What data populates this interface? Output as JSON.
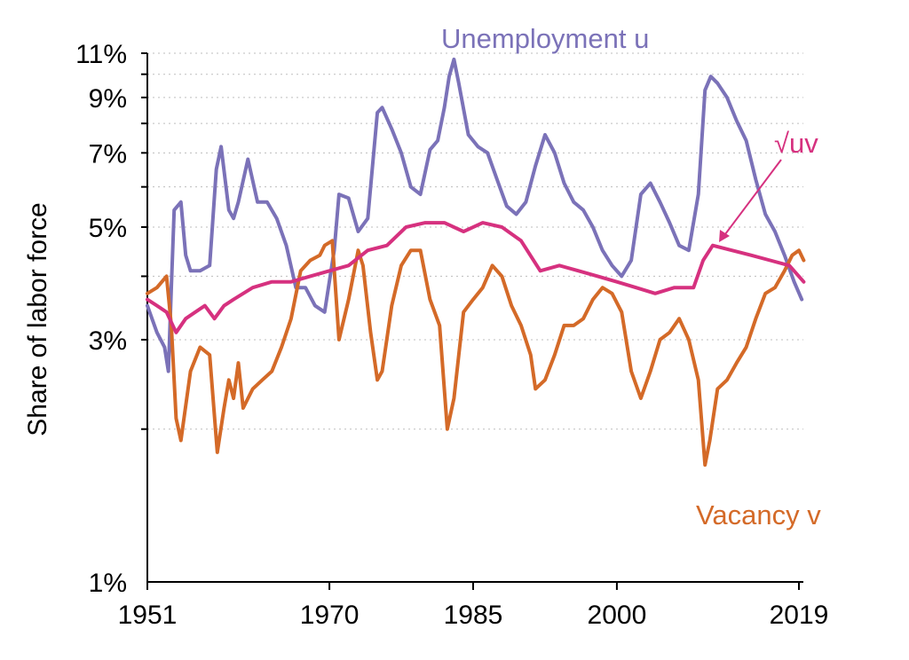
{
  "chart_data": {
    "type": "line",
    "ylabel": "Share of labor force",
    "y_scale": "log",
    "ylim": [
      1,
      11
    ],
    "xlim": [
      1951,
      2019
    ],
    "x_ticks": [
      "1951",
      "1970",
      "1985",
      "2000",
      "2019"
    ],
    "y_ticks": [
      "1%",
      "3%",
      "5%",
      "7%",
      "9%",
      "11%"
    ],
    "y_gridlines": [
      2,
      3,
      4,
      5,
      6,
      7,
      8,
      9,
      10,
      11
    ],
    "grid": "dotted horizontal",
    "series": [
      {
        "name": "Unemployment u",
        "color": "#7b72b8",
        "x": [
          1951,
          1952,
          1952.8,
          1953.2,
          1953.5,
          1953.8,
          1954.5,
          1955,
          1955.5,
          1956.5,
          1957.5,
          1958.2,
          1958.7,
          1959.5,
          1960,
          1960.5,
          1961.5,
          1962.5,
          1963.5,
          1964.5,
          1965.5,
          1966.5,
          1967.5,
          1968.5,
          1969.5,
          1970.5,
          1971,
          1972,
          1973,
          1974,
          1975,
          1975.5,
          1976.5,
          1977.5,
          1978.5,
          1979.5,
          1980.5,
          1981.3,
          1982,
          1982.5,
          1983,
          1983.5,
          1984.5,
          1985.5,
          1986.5,
          1987.5,
          1988.5,
          1989.5,
          1990.5,
          1991.5,
          1992.5,
          1993.5,
          1994.5,
          1995.5,
          1996.5,
          1997.5,
          1998.5,
          1999.5,
          2000.5,
          2001.5,
          2002.5,
          2003.5,
          2004.5,
          2005.5,
          2006.5,
          2007.5,
          2008.5,
          2009.2,
          2009.8,
          2010.5,
          2011.5,
          2012.5,
          2013.5,
          2014.5,
          2015.5,
          2016.5,
          2017.5,
          2018.5,
          2019.3
        ],
        "values": [
          3.5,
          3.1,
          2.9,
          2.6,
          3.8,
          5.4,
          5.6,
          4.4,
          4.1,
          4.1,
          4.2,
          6.5,
          7.2,
          5.4,
          5.2,
          5.6,
          6.8,
          5.6,
          5.6,
          5.2,
          4.6,
          3.8,
          3.8,
          3.5,
          3.4,
          4.5,
          5.8,
          5.7,
          4.9,
          5.2,
          8.4,
          8.6,
          7.8,
          7.0,
          6.0,
          5.8,
          7.1,
          7.4,
          8.6,
          9.9,
          10.7,
          9.6,
          7.6,
          7.2,
          7.0,
          6.2,
          5.5,
          5.3,
          5.6,
          6.6,
          7.6,
          7.0,
          6.1,
          5.6,
          5.4,
          5.0,
          4.5,
          4.2,
          4.0,
          4.3,
          5.8,
          6.1,
          5.6,
          5.1,
          4.6,
          4.5,
          5.8,
          9.3,
          9.9,
          9.6,
          9.0,
          8.1,
          7.4,
          6.2,
          5.3,
          4.9,
          4.4,
          3.9,
          3.6
        ]
      },
      {
        "name": "Vacancy v",
        "color": "#d46a28",
        "x": [
          1951,
          1952,
          1953,
          1953.5,
          1954,
          1954.5,
          1955.5,
          1956.5,
          1957.5,
          1958.3,
          1959,
          1959.5,
          1960,
          1960.5,
          1961,
          1962,
          1963,
          1964,
          1965,
          1966,
          1967,
          1968,
          1969,
          1969.5,
          1970.3,
          1971,
          1972,
          1973,
          1973.5,
          1974.3,
          1975,
          1975.5,
          1976.5,
          1977.5,
          1978.5,
          1979.5,
          1980.5,
          1981.5,
          1982.3,
          1983,
          1984,
          1985,
          1986,
          1987,
          1988,
          1989,
          1990,
          1991,
          1991.5,
          1992.5,
          1993.5,
          1994.5,
          1995.5,
          1996.5,
          1997.5,
          1998.5,
          1999.5,
          2000.5,
          2001.5,
          2002.5,
          2003.5,
          2004.5,
          2005.5,
          2006.5,
          2007.5,
          2008.5,
          2009.2,
          2009.7,
          2010.5,
          2011.5,
          2012.5,
          2013.5,
          2014.5,
          2015.5,
          2016.5,
          2017.5,
          2018.3,
          2019,
          2019.5
        ],
        "values": [
          3.7,
          3.8,
          4.0,
          3.2,
          2.1,
          1.9,
          2.6,
          2.9,
          2.8,
          1.8,
          2.2,
          2.5,
          2.3,
          2.7,
          2.2,
          2.4,
          2.5,
          2.6,
          2.9,
          3.3,
          4.1,
          4.3,
          4.4,
          4.6,
          4.7,
          3.0,
          3.6,
          4.5,
          4.2,
          3.1,
          2.5,
          2.6,
          3.5,
          4.2,
          4.5,
          4.5,
          3.6,
          3.2,
          2.0,
          2.3,
          3.4,
          3.6,
          3.8,
          4.2,
          4.0,
          3.5,
          3.2,
          2.8,
          2.4,
          2.5,
          2.8,
          3.2,
          3.2,
          3.3,
          3.6,
          3.8,
          3.7,
          3.4,
          2.6,
          2.3,
          2.6,
          3.0,
          3.1,
          3.3,
          3.0,
          2.5,
          1.7,
          1.9,
          2.4,
          2.5,
          2.7,
          2.9,
          3.3,
          3.7,
          3.8,
          4.1,
          4.4,
          4.5,
          4.3
        ]
      },
      {
        "name": "√uv",
        "color": "#d6317f",
        "x": [
          1951,
          1952,
          1953,
          1954,
          1955,
          1956,
          1957,
          1958,
          1959,
          1960,
          1962,
          1964,
          1966,
          1968,
          1970,
          1972,
          1974,
          1976,
          1978,
          1980,
          1982,
          1984,
          1986,
          1988,
          1990,
          1992,
          1994,
          1996,
          1998,
          2000,
          2002,
          2004,
          2006,
          2008,
          2009,
          2010,
          2012,
          2014,
          2016,
          2018,
          2019.5
        ],
        "values": [
          3.6,
          3.5,
          3.4,
          3.1,
          3.3,
          3.4,
          3.5,
          3.3,
          3.5,
          3.6,
          3.8,
          3.9,
          3.9,
          4.0,
          4.1,
          4.2,
          4.5,
          4.6,
          5.0,
          5.1,
          5.1,
          4.9,
          5.1,
          5.0,
          4.7,
          4.1,
          4.2,
          4.1,
          4.0,
          3.9,
          3.8,
          3.7,
          3.8,
          3.8,
          4.3,
          4.6,
          4.5,
          4.4,
          4.3,
          4.2,
          3.9
        ]
      }
    ],
    "annotations": [
      {
        "text": "Unemployment u",
        "series": 0
      },
      {
        "text": "√uv",
        "series": 2,
        "arrow": true
      },
      {
        "text": "Vacancy v",
        "series": 1
      }
    ]
  }
}
